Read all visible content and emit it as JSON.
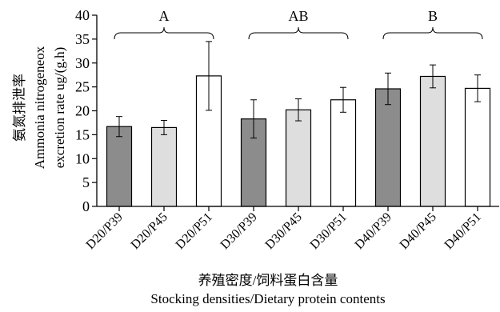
{
  "chart_data": {
    "type": "bar",
    "categories": [
      "D20/P39",
      "D20/P45",
      "D20/P51",
      "D30/P39",
      "D30/P45",
      "D30/P51",
      "D40/P39",
      "D40/P45",
      "D40/P51"
    ],
    "values": [
      16.7,
      16.5,
      27.3,
      18.3,
      20.2,
      22.3,
      24.6,
      27.2,
      24.7
    ],
    "errors": [
      2.1,
      1.5,
      7.2,
      4.0,
      2.3,
      2.6,
      3.3,
      2.4,
      2.8
    ],
    "bar_colors": [
      "#8c8c8c",
      "#dedede",
      "#ffffff",
      "#8c8c8c",
      "#dedede",
      "#ffffff",
      "#8c8c8c",
      "#dedede",
      "#ffffff"
    ],
    "ylim": [
      0,
      40
    ],
    "yticks": [
      0,
      5,
      10,
      15,
      20,
      25,
      30,
      35,
      40
    ],
    "ylabel_lines": [
      "氨氮排泄率",
      "Ammonia nitrogeneox",
      "excretion rate ug/(g.h)"
    ],
    "xlabel_lines": [
      "养殖密度/饲料蛋白含量",
      "Stocking densities/Dietary protein contents"
    ],
    "groups": [
      {
        "label": "A",
        "from": 0,
        "to": 2
      },
      {
        "label": "AB",
        "from": 3,
        "to": 5
      },
      {
        "label": "B",
        "from": 6,
        "to": 8
      }
    ]
  }
}
